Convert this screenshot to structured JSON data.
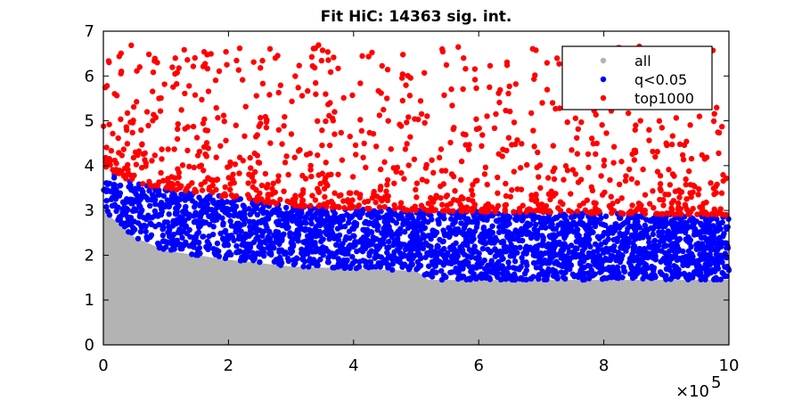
{
  "chart_data": {
    "type": "scatter",
    "title": "Fit HiC: 14363 sig. int.",
    "xlabel": "",
    "ylabel": "",
    "xlim": [
      0,
      10
    ],
    "ylim": [
      0,
      7
    ],
    "x_ticks": [
      "0",
      "2",
      "4",
      "6",
      "8",
      "10"
    ],
    "y_ticks": [
      "0",
      "1",
      "2",
      "3",
      "4",
      "5",
      "6",
      "7"
    ],
    "x_multiplier": "×10",
    "x_multiplier_exponent": "5",
    "grid": false,
    "legend_position": "top-right",
    "series": [
      {
        "name": "all",
        "color": "#b3b3b3",
        "lower_envelope": [
          [
            0,
            0
          ],
          [
            10,
            0
          ]
        ],
        "upper_envelope": [
          [
            0,
            3.0
          ],
          [
            0.5,
            2.4
          ],
          [
            1,
            2.1
          ],
          [
            2,
            1.9
          ],
          [
            3,
            1.75
          ],
          [
            5,
            1.65
          ],
          [
            5.2,
            1.45
          ],
          [
            10,
            1.45
          ]
        ]
      },
      {
        "name": "q<0.05",
        "color": "#0000ff",
        "lower_envelope": [
          [
            0,
            3.0
          ],
          [
            0.5,
            2.4
          ],
          [
            1,
            2.1
          ],
          [
            2,
            1.9
          ],
          [
            3,
            1.75
          ],
          [
            5,
            1.65
          ],
          [
            5.2,
            1.45
          ],
          [
            10,
            1.45
          ]
        ],
        "upper_envelope": [
          [
            0,
            4.0
          ],
          [
            0.5,
            3.6
          ],
          [
            1,
            3.5
          ],
          [
            2,
            3.3
          ],
          [
            3,
            3.1
          ],
          [
            5,
            3.0
          ],
          [
            7,
            2.95
          ],
          [
            10,
            2.9
          ]
        ]
      },
      {
        "name": "top1000",
        "color": "#ff0000",
        "lower_envelope": [
          [
            0,
            4.0
          ],
          [
            0.5,
            3.6
          ],
          [
            1,
            3.5
          ],
          [
            2,
            3.3
          ],
          [
            3,
            3.1
          ],
          [
            5,
            3.0
          ],
          [
            7,
            2.95
          ],
          [
            10,
            2.9
          ]
        ],
        "upper_envelope": [
          [
            0,
            6.7
          ],
          [
            10,
            6.7
          ]
        ]
      }
    ]
  }
}
